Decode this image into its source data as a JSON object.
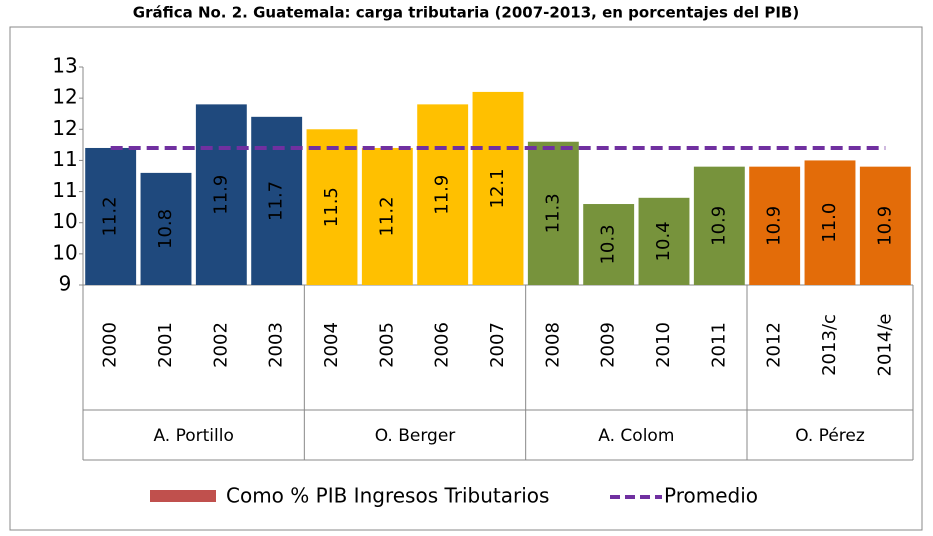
{
  "chart_data": {
    "type": "bar",
    "title": "Gráfica No. 2. Guatemala: carga tributaria (2007-2013, en porcentajes del PIB)",
    "ylim": [
      9,
      12.5
    ],
    "yticks": [
      9,
      {
        "value": 9.5,
        "label": "10"
      },
      {
        "value": 10,
        "label": "10"
      },
      {
        "value": 10.5,
        "label": "11"
      },
      {
        "value": 11,
        "label": "11"
      },
      {
        "value": 11.5,
        "label": "12"
      },
      {
        "value": 12,
        "label": "12"
      },
      {
        "value": 12.5,
        "label": "13"
      }
    ],
    "groups": [
      {
        "name": "A. Portillo",
        "color": "#1f497d",
        "label_color": "#ffffff",
        "categories": [
          "2000",
          "2001",
          "2002",
          "2003"
        ],
        "values": [
          11.2,
          10.8,
          11.9,
          11.7
        ]
      },
      {
        "name": "O. Berger",
        "color": "#ffc000",
        "label_color": "#000000",
        "categories": [
          "2004",
          "2005",
          "2006",
          "2007"
        ],
        "values": [
          11.5,
          11.2,
          11.9,
          12.1
        ]
      },
      {
        "name": "A. Colom",
        "color": "#77933c",
        "label_color": "#ffffff",
        "categories": [
          "2008",
          "2009",
          "2010",
          "2011"
        ],
        "values": [
          11.3,
          10.3,
          10.4,
          10.9
        ]
      },
      {
        "name": "O. Pérez",
        "color": "#e36c09",
        "label_color": "#ffffff",
        "categories": [
          "2012",
          "2013/c",
          "2014/e"
        ],
        "values": [
          10.9,
          11,
          10.9
        ],
        "value_labels": [
          "10.9",
          "11.0",
          "10.9"
        ]
      }
    ],
    "series": [
      {
        "name": "Como % PIB Ingresos Tributarios",
        "color": "#c0504d"
      },
      {
        "name": "Promedio",
        "color": "#7030a0",
        "type": "line",
        "values": [
          11.2,
          11.2,
          11.2,
          11.2,
          11.2,
          11.2,
          11.2,
          11.2,
          11.2,
          11.2,
          11.2,
          11.2,
          11.2,
          11.2,
          11.2
        ]
      }
    ]
  }
}
